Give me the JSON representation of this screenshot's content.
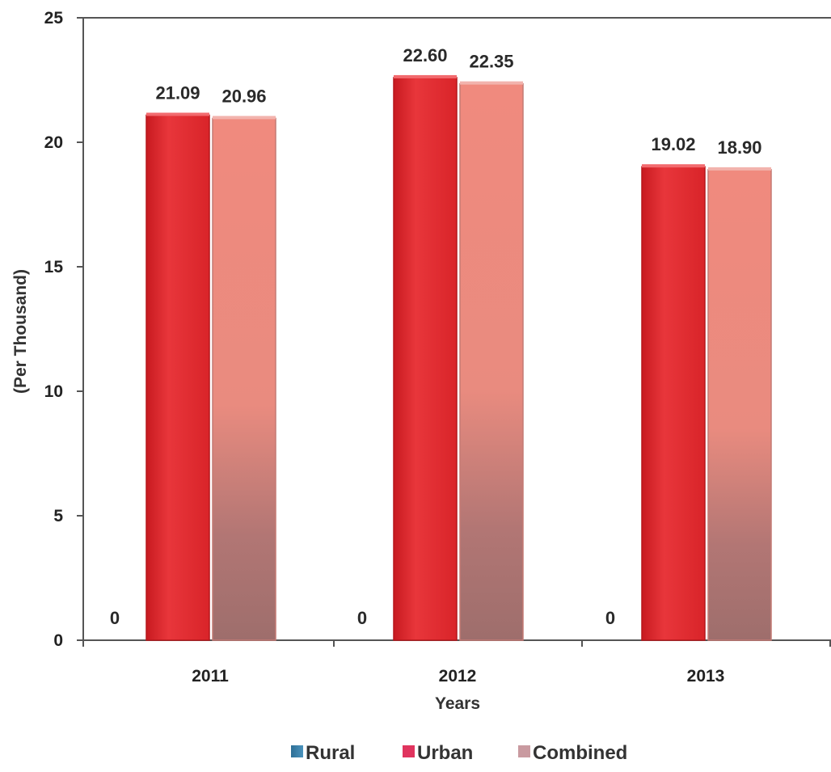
{
  "chart_data": {
    "type": "bar",
    "categories": [
      "2011",
      "2012",
      "2013"
    ],
    "series": [
      {
        "name": "Rural",
        "values": [
          0,
          0,
          0
        ],
        "labels": [
          "0",
          "0",
          "0"
        ]
      },
      {
        "name": "Urban",
        "values": [
          21.09,
          22.6,
          19.02
        ],
        "labels": [
          "21.09",
          "22.60",
          "19.02"
        ]
      },
      {
        "name": "Combined",
        "values": [
          20.96,
          22.35,
          18.9
        ],
        "labels": [
          "20.96",
          "22.35",
          "18.90"
        ]
      }
    ],
    "xlabel": "Years",
    "ylabel": "(Per Thousand)",
    "ylim": [
      0,
      25
    ],
    "yticks": [
      0,
      5,
      10,
      15,
      20,
      25
    ],
    "legend_position": "bottom",
    "grid": false,
    "colors": {
      "rural": "#3a7fa8",
      "urban": "#e02a30",
      "combined": "#ef8478",
      "combined_bottom": "#a0706e"
    }
  }
}
